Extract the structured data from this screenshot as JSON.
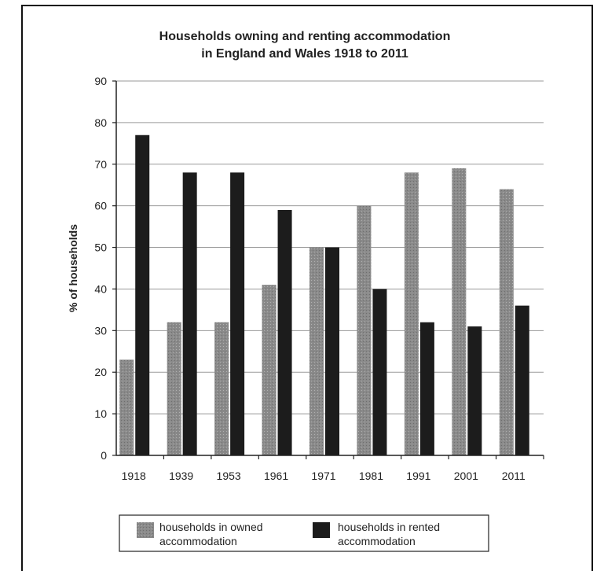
{
  "chart_data": {
    "type": "bar",
    "title": [
      "Households owning and renting accommodation",
      "in England and Wales 1918 to 2011"
    ],
    "xlabel": "",
    "ylabel": "% of households",
    "categories": [
      "1918",
      "1939",
      "1953",
      "1961",
      "1971",
      "1981",
      "1991",
      "2001",
      "2011"
    ],
    "series": [
      {
        "name": [
          "households in owned",
          "accommodation"
        ],
        "values": [
          23,
          32,
          32,
          41,
          50,
          60,
          68,
          69,
          64
        ],
        "color": "#8a8a8a"
      },
      {
        "name": [
          "households in rented",
          "accommodation"
        ],
        "values": [
          77,
          68,
          68,
          59,
          50,
          40,
          32,
          31,
          36
        ],
        "color": "#1c1c1c"
      }
    ],
    "ylim": [
      0,
      90
    ],
    "yticks": [
      0,
      10,
      20,
      30,
      40,
      50,
      60,
      70,
      80,
      90
    ],
    "grid": true,
    "legend": "bottom"
  }
}
